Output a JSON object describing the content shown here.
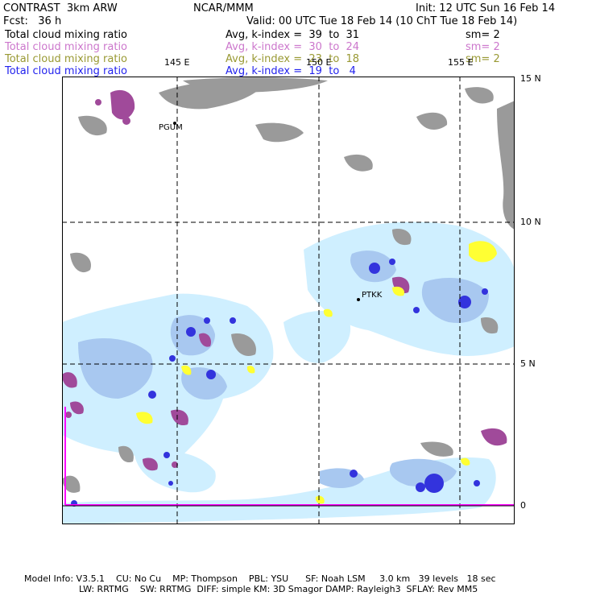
{
  "header": {
    "left1": "CONTRAST  3km ARW",
    "center1": "NCAR/MMM",
    "right1": "Init: 12 UTC Sun 16 Feb 14",
    "left2": "Fcst:   36 h",
    "valid": "Valid: 00 UTC Tue 18 Feb 14 (10 ChT Tue 18 Feb 14)"
  },
  "fields": [
    {
      "name": "Total cloud mixing ratio",
      "range": "Avg, k-index =  39  to  31",
      "sm": "sm= 2",
      "color": "#000000"
    },
    {
      "name": "Total cloud mixing ratio",
      "range": "Avg, k-index =  30  to  24",
      "sm": "sm= 2",
      "color": "#cc77cc"
    },
    {
      "name": "Total cloud mixing ratio",
      "range": "Avg, k-index =  23  to  18",
      "sm": "sm= 2",
      "color": "#999933"
    },
    {
      "name": "Total cloud mixing ratio",
      "range": "Avg, k-index =  19  to   4",
      "sm": "",
      "color": "#2222ee"
    }
  ],
  "axes": {
    "lon_labels": [
      "145 E",
      "150 E",
      "155 E"
    ],
    "lat_labels": [
      "15 N",
      "10 N",
      "5 N",
      "0"
    ]
  },
  "stations": [
    {
      "label": "PGUM"
    },
    {
      "label": "PTKK"
    }
  ],
  "footer": {
    "line1": "Model Info: V3.5.1    CU: No Cu    MP: Thompson    PBL: YSU      SF: Noah LSM     3.0 km   39 levels   18 sec",
    "line2": "LW: RRTMG    SW: RRTMG  DIFF: simple KM: 3D Smagor DAMP: Rayleigh3  SFLAY: Rev MM5"
  },
  "colors": {
    "gray_cloud": "#9a9a9a",
    "magenta_cloud": "#a04a9a",
    "light_blue": "#cfefff",
    "mid_blue": "#a8c8f0",
    "deep_blue": "#3333dd",
    "yellow": "#ffff33",
    "domain_line": "#ff00ff"
  }
}
